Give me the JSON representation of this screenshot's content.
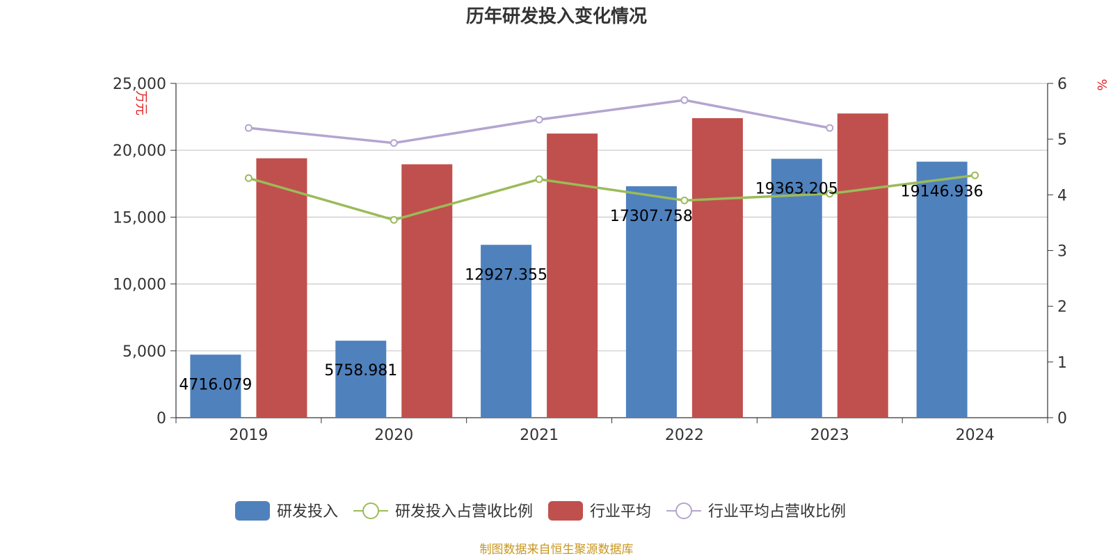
{
  "chart_data": {
    "type": "bar",
    "title": "历年研发投入变化情况",
    "categories": [
      "2019",
      "2020",
      "2021",
      "2022",
      "2023",
      "2024"
    ],
    "y_left": {
      "unit": "万元",
      "min": 0,
      "max": 25000,
      "ticks": [
        "0",
        "5,000",
        "10,000",
        "15,000",
        "20,000",
        "25,000"
      ],
      "tick_values": [
        0,
        5000,
        10000,
        15000,
        20000,
        25000
      ]
    },
    "y_right": {
      "unit": "%",
      "min": 0,
      "max": 6,
      "ticks": [
        "0",
        "1",
        "2",
        "3",
        "4",
        "5",
        "6"
      ],
      "tick_values": [
        0,
        1,
        2,
        3,
        4,
        5,
        6
      ]
    },
    "grid": true,
    "legend_position": "bottom",
    "series": [
      {
        "name": "研发投入",
        "kind": "bar",
        "axis": "left",
        "color": "#4f81bd",
        "values": [
          4716.079,
          5758.981,
          12927.355,
          17307.758,
          19363.205,
          19146.936
        ],
        "labels": [
          "4716.079",
          "5758.981",
          "12927.355",
          "17307.758",
          "19363.205",
          "19146.936"
        ]
      },
      {
        "name": "研发投入占营收比例",
        "kind": "line",
        "axis": "right",
        "color": "#9bbb59",
        "values": [
          4.3,
          3.55,
          4.28,
          3.9,
          4.02,
          4.35
        ]
      },
      {
        "name": "行业平均",
        "kind": "bar",
        "axis": "left",
        "color": "#c0504d",
        "values": [
          19400,
          18950,
          21250,
          22400,
          22750,
          null
        ]
      },
      {
        "name": "行业平均占营收比例",
        "kind": "line",
        "axis": "right",
        "color": "#b3a5cf",
        "values": [
          5.2,
          4.93,
          5.35,
          5.7,
          5.2,
          null
        ]
      }
    ],
    "source": "制图数据来自恒生聚源数据库"
  }
}
